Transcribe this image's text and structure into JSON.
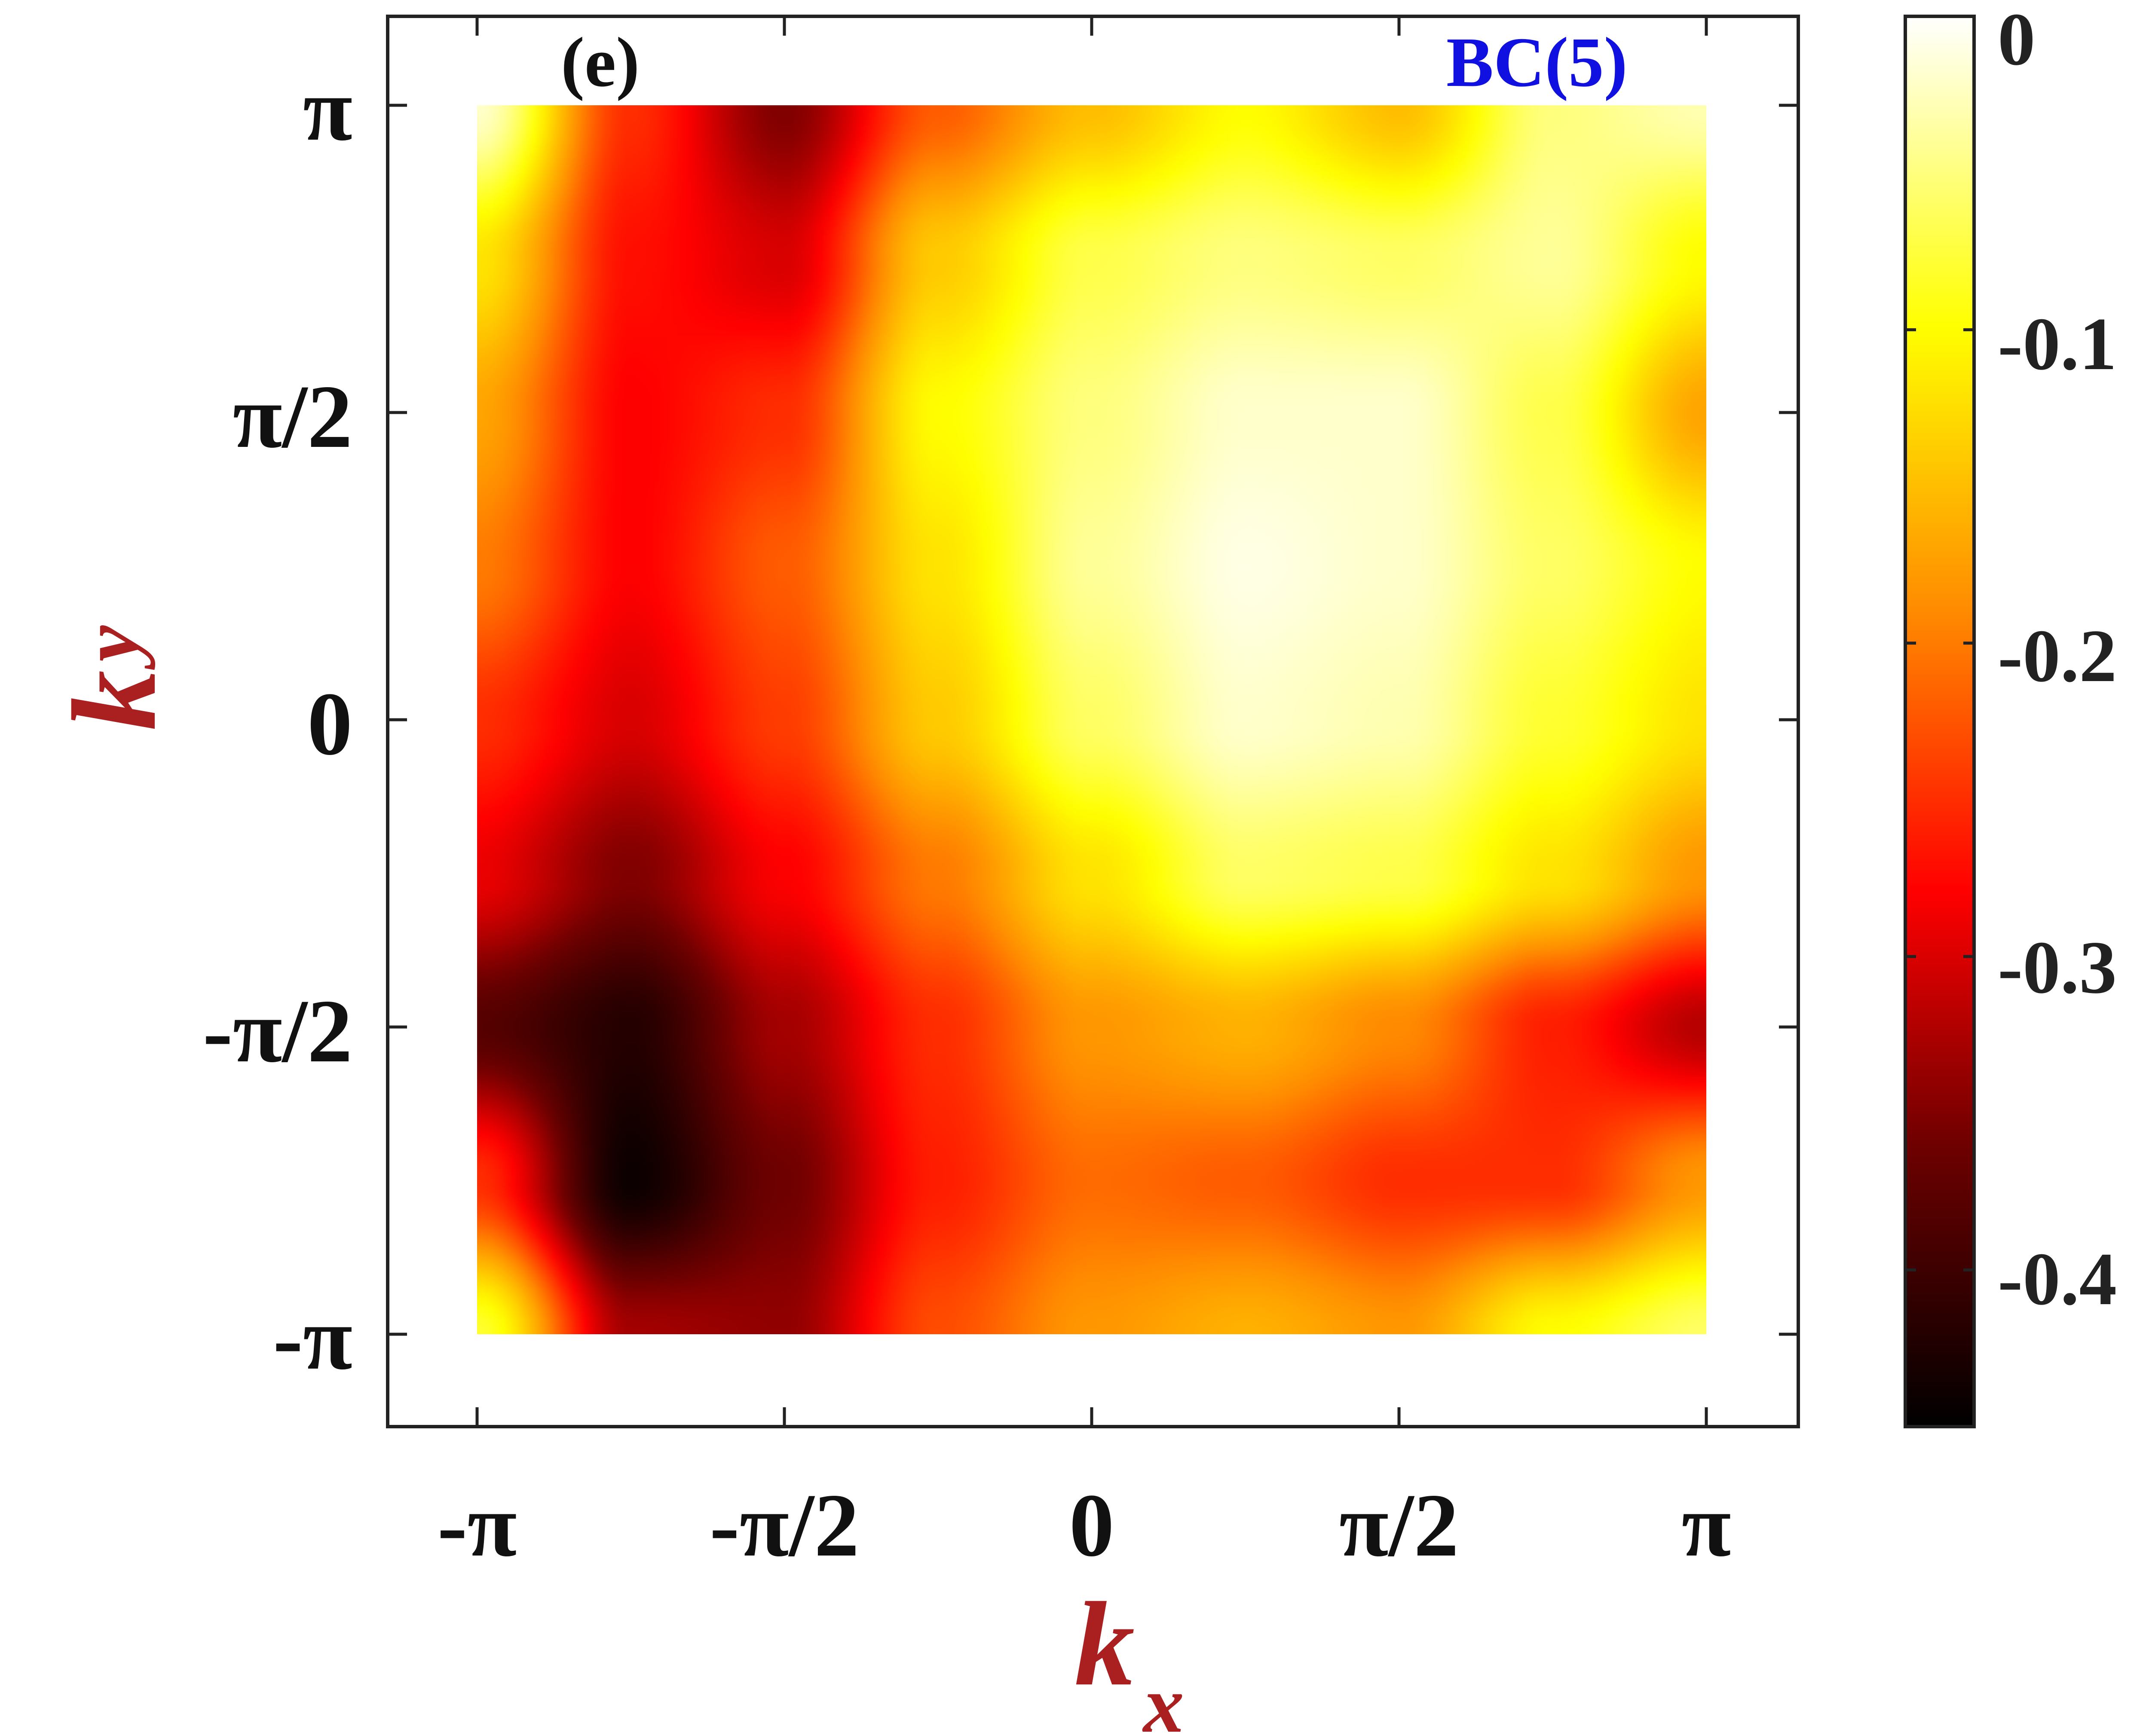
{
  "chart_data": {
    "type": "heatmap",
    "panel_label": "(e)",
    "annotation": "BC(5)",
    "xlabel": "k",
    "xlabel_sub": "x",
    "ylabel": "k",
    "ylabel_sub": "y",
    "x_range": [
      -3.14159,
      3.14159
    ],
    "y_range": [
      -3.14159,
      3.14159
    ],
    "x_ticks": [
      {
        "value": -3.14159,
        "label": "-π"
      },
      {
        "value": -1.5708,
        "label": "-π/2"
      },
      {
        "value": 0,
        "label": "0"
      },
      {
        "value": 1.5708,
        "label": "π/2"
      },
      {
        "value": 3.14159,
        "label": "π"
      }
    ],
    "y_ticks": [
      {
        "value": -3.14159,
        "label": "-π"
      },
      {
        "value": -1.5708,
        "label": "-π/2"
      },
      {
        "value": 0,
        "label": "0"
      },
      {
        "value": 1.5708,
        "label": "π/2"
      },
      {
        "value": 3.14159,
        "label": "π"
      }
    ],
    "colorbar": {
      "range": [
        -0.45,
        0
      ],
      "ticks": [
        {
          "value": 0,
          "label": "0"
        },
        {
          "value": -0.1,
          "label": "-0.1"
        },
        {
          "value": -0.2,
          "label": "-0.2"
        },
        {
          "value": -0.3,
          "label": "-0.3"
        },
        {
          "value": -0.4,
          "label": "-0.4"
        }
      ],
      "colormap": "hot",
      "stops": [
        {
          "pos": 0.0,
          "color": "#000000"
        },
        {
          "pos": 0.2,
          "color": "#6e0000"
        },
        {
          "pos": 0.38,
          "color": "#ff0000"
        },
        {
          "pos": 0.58,
          "color": "#ff8c00"
        },
        {
          "pos": 0.78,
          "color": "#ffff00"
        },
        {
          "pos": 1.0,
          "color": "#ffffff"
        }
      ]
    },
    "grid": {
      "x": [
        -3.14159,
        -2.35619,
        -1.5708,
        -0.7854,
        0,
        0.7854,
        1.5708,
        2.35619,
        3.14159
      ],
      "y": [
        3.14159,
        2.35619,
        1.5708,
        0.7854,
        0,
        -0.7854,
        -1.5708,
        -2.35619,
        -3.14159
      ],
      "values": [
        [
          -0.02,
          -0.25,
          -0.35,
          -0.22,
          -0.15,
          -0.1,
          -0.15,
          -0.05,
          -0.03
        ],
        [
          -0.12,
          -0.27,
          -0.3,
          -0.14,
          -0.07,
          -0.05,
          -0.06,
          -0.04,
          -0.1
        ],
        [
          -0.17,
          -0.28,
          -0.25,
          -0.1,
          -0.05,
          -0.02,
          -0.02,
          -0.07,
          -0.17
        ],
        [
          -0.2,
          -0.28,
          -0.22,
          -0.12,
          -0.04,
          -0.01,
          -0.02,
          -0.06,
          -0.1
        ],
        [
          -0.25,
          -0.3,
          -0.24,
          -0.14,
          -0.06,
          -0.02,
          -0.03,
          -0.08,
          -0.12
        ],
        [
          -0.29,
          -0.35,
          -0.28,
          -0.2,
          -0.12,
          -0.06,
          -0.07,
          -0.12,
          -0.18
        ],
        [
          -0.38,
          -0.42,
          -0.33,
          -0.25,
          -0.18,
          -0.16,
          -0.19,
          -0.26,
          -0.32
        ],
        [
          -0.25,
          -0.44,
          -0.36,
          -0.26,
          -0.21,
          -0.22,
          -0.25,
          -0.25,
          -0.18
        ],
        [
          -0.08,
          -0.33,
          -0.34,
          -0.23,
          -0.18,
          -0.16,
          -0.18,
          -0.1,
          -0.06
        ]
      ]
    }
  }
}
